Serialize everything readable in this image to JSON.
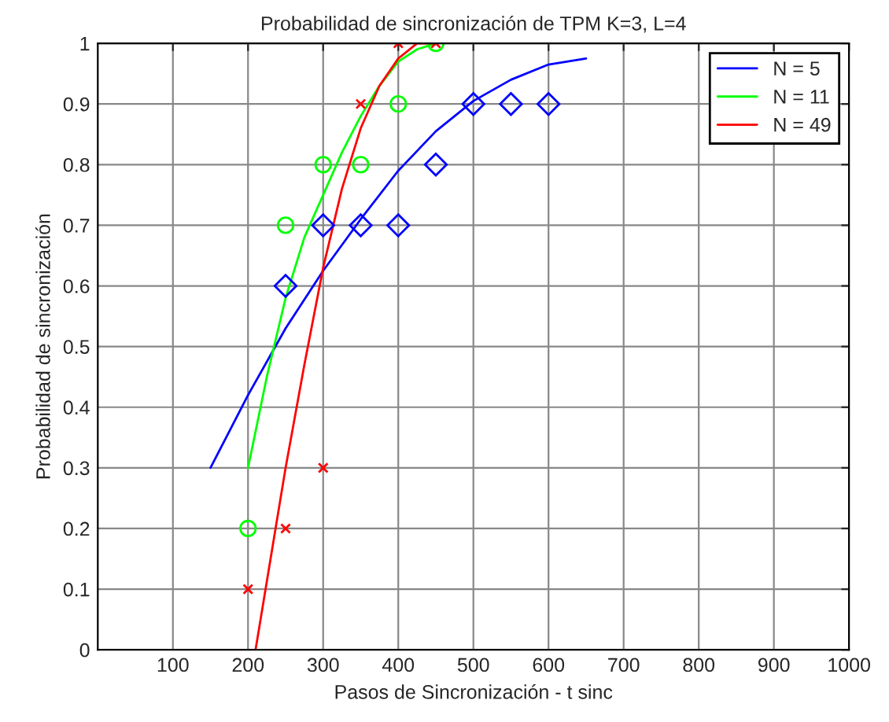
{
  "chart_data": {
    "type": "line",
    "title": "Probabilidad de sincronización de TPM K=3, L=4",
    "xlabel": "Pasos de Sincronización - t sinc",
    "ylabel": "Probabilidad de sincronización",
    "xlim": [
      0,
      1000
    ],
    "xticks": [
      100,
      200,
      300,
      400,
      500,
      600,
      700,
      800,
      900,
      1000
    ],
    "ylim": [
      0,
      1
    ],
    "yticks": [
      0,
      0.1,
      0.2,
      0.3,
      0.4,
      0.5,
      0.6,
      0.7,
      0.8,
      0.9,
      1
    ],
    "grid": true,
    "legend": "top right",
    "series": [
      {
        "name": "N = 5",
        "color": "#0000ff",
        "marker": "none",
        "x": [
          150,
          200,
          250,
          300,
          350,
          400,
          450,
          500,
          550,
          600,
          650
        ],
        "values": [
          0.3,
          0.42,
          0.53,
          0.625,
          0.71,
          0.79,
          0.855,
          0.905,
          0.94,
          0.965,
          0.975
        ]
      },
      {
        "name": "N = 11",
        "color": "#00ff00",
        "marker": "none",
        "x": [
          200,
          225,
          250,
          275,
          300,
          325,
          350,
          375,
          400,
          425,
          450
        ],
        "values": [
          0.3,
          0.45,
          0.58,
          0.68,
          0.75,
          0.82,
          0.88,
          0.93,
          0.97,
          0.99,
          1.0
        ]
      },
      {
        "name": "N = 49",
        "color": "#ff0000",
        "marker": "none",
        "x": [
          210,
          230,
          250,
          275,
          300,
          325,
          350,
          375,
          400,
          425,
          450
        ],
        "values": [
          0,
          0.15,
          0.3,
          0.47,
          0.63,
          0.76,
          0.86,
          0.93,
          0.975,
          1.0,
          1.0
        ]
      },
      {
        "type": "scatter",
        "color": "#0000ff",
        "marker": "diamond",
        "x": [
          250,
          300,
          350,
          400,
          450,
          500,
          550,
          600
        ],
        "values": [
          0.6,
          0.7,
          0.7,
          0.7,
          0.8,
          0.9,
          0.9,
          0.9
        ]
      },
      {
        "type": "scatter",
        "color": "#00ff00",
        "marker": "circle",
        "x": [
          200,
          250,
          300,
          350,
          400,
          450
        ],
        "values": [
          0.2,
          0.7,
          0.8,
          0.8,
          0.9,
          1.0
        ]
      },
      {
        "type": "scatter",
        "color": "#ff0000",
        "marker": "cross",
        "x": [
          200,
          250,
          300,
          350,
          400,
          450
        ],
        "values": [
          0.1,
          0.2,
          0.3,
          0.9,
          1.0,
          1.0
        ]
      }
    ]
  }
}
